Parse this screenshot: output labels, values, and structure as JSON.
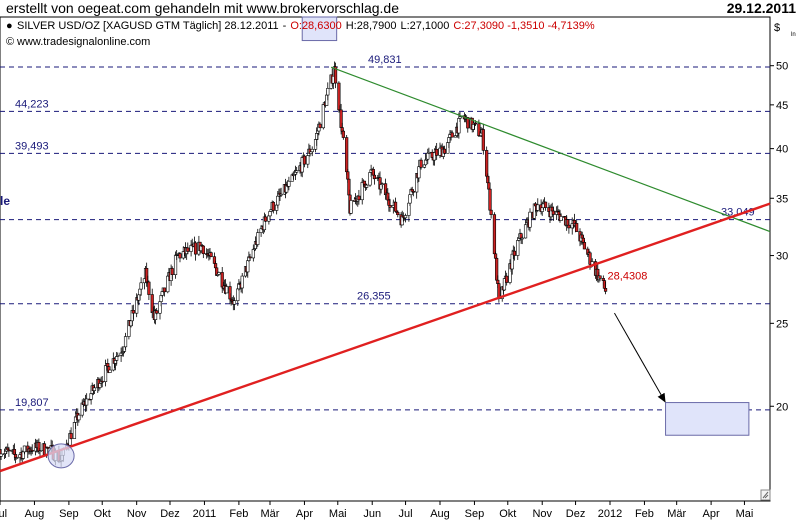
{
  "header": {
    "credit": "erstellt von oegeat.com gehandeln mit www.brokervorschlag.de",
    "date": "29.12.2011"
  },
  "chart_data": {
    "type": "candlestick",
    "info": {
      "instrument": "SILVER USD/OZ [XAGUSD GTM Täglich] 28.12.2011",
      "open": "O:28,6300",
      "high": "H:28,7900",
      "low": "L:27,1000",
      "close_change": "C:27,3090 -1,3510 -4,7139%",
      "source": "www.tradesignalonline.com"
    },
    "currency_label": "$",
    "scale": "log",
    "y_range": [
      15.5,
      57
    ],
    "y_ticks": [
      20,
      25,
      30,
      35,
      40,
      45,
      50
    ],
    "x_range": [
      "2010-07-01",
      "2012-05-24"
    ],
    "x_ticks": [
      {
        "label": "Jul",
        "date": "2010-07-01"
      },
      {
        "label": "Aug",
        "date": "2010-08-01"
      },
      {
        "label": "Sep",
        "date": "2010-09-01"
      },
      {
        "label": "Okt",
        "date": "2010-10-01"
      },
      {
        "label": "Nov",
        "date": "2010-11-01"
      },
      {
        "label": "Dez",
        "date": "2010-12-01"
      },
      {
        "label": "2011",
        "date": "2011-01-01"
      },
      {
        "label": "Feb",
        "date": "2011-02-01"
      },
      {
        "label": "Mär",
        "date": "2011-03-01"
      },
      {
        "label": "Apr",
        "date": "2011-04-01"
      },
      {
        "label": "Mai",
        "date": "2011-05-01"
      },
      {
        "label": "Jun",
        "date": "2011-06-01"
      },
      {
        "label": "Jul",
        "date": "2011-07-01"
      },
      {
        "label": "Aug",
        "date": "2011-08-01"
      },
      {
        "label": "Sep",
        "date": "2011-09-01"
      },
      {
        "label": "Okt",
        "date": "2011-10-01"
      },
      {
        "label": "Nov",
        "date": "2011-11-01"
      },
      {
        "label": "Dez",
        "date": "2011-12-01"
      },
      {
        "label": "2012",
        "date": "2012-01-01"
      },
      {
        "label": "Feb",
        "date": "2012-02-01"
      },
      {
        "label": "Mär",
        "date": "2012-03-01"
      },
      {
        "label": "Apr",
        "date": "2012-04-01"
      },
      {
        "label": "Mai",
        "date": "2012-05-01"
      }
    ],
    "price_path": [
      {
        "date": "2010-07-01",
        "value": 17.8
      },
      {
        "date": "2010-07-15",
        "value": 17.5
      },
      {
        "date": "2010-07-30",
        "value": 17.9
      },
      {
        "date": "2010-08-15",
        "value": 17.8
      },
      {
        "date": "2010-08-25",
        "value": 17.3
      },
      {
        "date": "2010-09-10",
        "value": 19.6
      },
      {
        "date": "2010-10-01",
        "value": 21.7
      },
      {
        "date": "2010-10-20",
        "value": 23.5
      },
      {
        "date": "2010-11-09",
        "value": 28.5
      },
      {
        "date": "2010-11-17",
        "value": 25.3
      },
      {
        "date": "2010-12-08",
        "value": 30.0
      },
      {
        "date": "2010-12-30",
        "value": 30.8
      },
      {
        "date": "2011-01-28",
        "value": 26.4
      },
      {
        "date": "2011-02-28",
        "value": 33.8
      },
      {
        "date": "2011-03-20",
        "value": 36.5
      },
      {
        "date": "2011-04-10",
        "value": 40.5
      },
      {
        "date": "2011-04-28",
        "value": 49.5
      },
      {
        "date": "2011-05-12",
        "value": 34.0
      },
      {
        "date": "2011-05-31",
        "value": 37.5
      },
      {
        "date": "2011-06-28",
        "value": 33.0
      },
      {
        "date": "2011-07-15",
        "value": 38.5
      },
      {
        "date": "2011-08-05",
        "value": 40.0
      },
      {
        "date": "2011-08-22",
        "value": 43.5
      },
      {
        "date": "2011-09-08",
        "value": 41.5
      },
      {
        "date": "2011-09-23",
        "value": 26.4
      },
      {
        "date": "2011-10-10",
        "value": 31.0
      },
      {
        "date": "2011-10-28",
        "value": 34.5
      },
      {
        "date": "2011-11-15",
        "value": 33.5
      },
      {
        "date": "2011-11-30",
        "value": 32.5
      },
      {
        "date": "2011-12-15",
        "value": 29.5
      },
      {
        "date": "2011-12-28",
        "value": 27.3
      }
    ],
    "levels": [
      {
        "label": "49,831",
        "value": 49.831
      },
      {
        "label": "44,223",
        "value": 44.223
      },
      {
        "label": "39,493",
        "value": 39.493
      },
      {
        "label": "33,049",
        "value": 33.049
      },
      {
        "label": "26,355",
        "value": 26.355
      },
      {
        "label": "19,807",
        "value": 19.807
      }
    ],
    "trendlines": {
      "support": {
        "from": {
          "date": "2010-07-01",
          "value": 16.8
        },
        "to": {
          "date": "2012-05-24",
          "value": 34.5
        },
        "color": "#e02020"
      },
      "resistance": {
        "from": {
          "date": "2011-04-25",
          "value": 49.8
        },
        "to": {
          "date": "2012-05-24",
          "value": 32.0
        },
        "color": "#2e8b2e"
      }
    },
    "last_price_label": "28,4308",
    "forecast": {
      "arrow": {
        "from": {
          "date": "2012-01-05",
          "value": 25.7
        },
        "to": {
          "date": "2012-02-20",
          "value": 20.2
        }
      },
      "target_box": {
        "date_from": "2012-02-20",
        "date_to": "2012-05-05",
        "value_high": 20.2,
        "value_low": 18.5
      }
    },
    "highlights": {
      "top_box": {
        "date_from": "2011-03-30",
        "date_to": "2011-04-30",
        "value_high": 57,
        "value_low": 53.5
      },
      "circle": {
        "date": "2010-08-25",
        "value": 17.5
      }
    },
    "left_edge_label": "le",
    "colors": {
      "grid": "#1a1a7a",
      "bull": "#ffffff",
      "bear": "#cc2222",
      "box_fill": "#e0e4fa",
      "box_stroke": "#6a6aa8"
    }
  }
}
